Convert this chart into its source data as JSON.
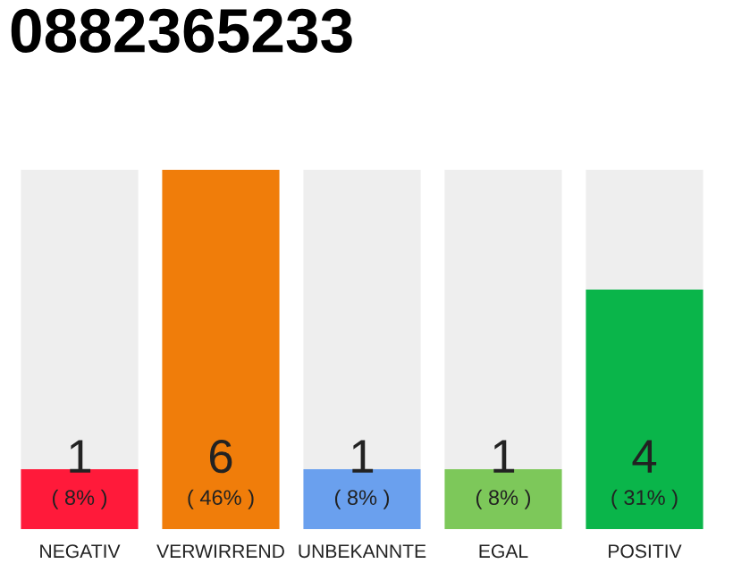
{
  "chart_data": {
    "type": "bar",
    "title": "0882365233",
    "categories": [
      "NEGATIV",
      "VERWIRREND",
      "UNBEKANNTE",
      "EGAL",
      "POSITIV"
    ],
    "stacked": true,
    "series": [
      {
        "color": "#ff1a3a",
        "colors": [
          "#ff1a3a",
          "#f07d0a",
          "#6aa0ee",
          "#7dc85a",
          "#0ab54a"
        ],
        "values": [
          1,
          6,
          1,
          1,
          4
        ],
        "value_labels": [
          "1",
          "6",
          "1",
          "1",
          "4"
        ]
      },
      {
        "color": "#eeeeee",
        "values": [
          5,
          0,
          5,
          5,
          2
        ]
      }
    ],
    "annotations": [
      {
        "text": "( 8% )",
        "x": "NEGATIV",
        "y": 0
      },
      {
        "text": "( 46% )",
        "x": "VERWIRREND",
        "y": 0
      },
      {
        "text": "( 8% )",
        "x": "UNBEKANNTE",
        "y": 0
      },
      {
        "text": "( 8% )",
        "x": "EGAL",
        "y": 0
      },
      {
        "text": "( 31% )",
        "x": "POSITIV",
        "y": 0
      }
    ],
    "grid": false,
    "legend": false
  }
}
